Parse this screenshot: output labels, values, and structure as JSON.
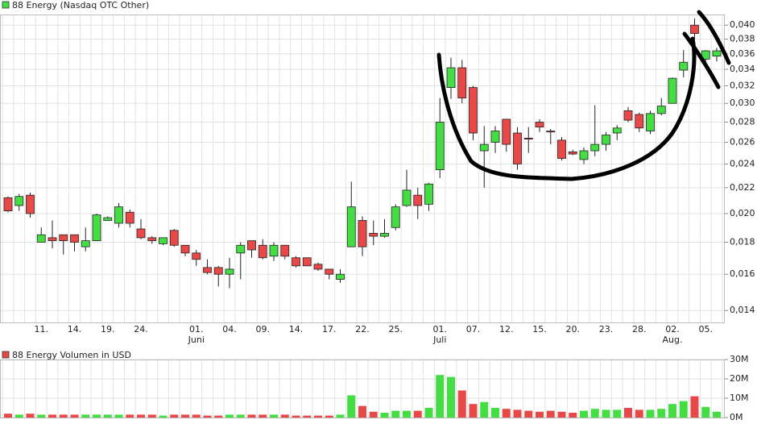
{
  "chart_data": [
    {
      "type": "candlestick",
      "yscale": "log",
      "grid": true,
      "up_color": "#44dd44",
      "down_color": "#e84848",
      "series": [
        {
          "name": "88 Energy (Nasdaq OTC Other)",
          "color": "#44dd44",
          "open": [
            0.0212,
            0.0206,
            0.0214,
            0.018,
            0.0183,
            0.0185,
            0.0185,
            0.0177,
            0.0181,
            0.0195,
            0.0193,
            0.0201,
            0.0189,
            0.0183,
            0.0179,
            0.0188,
            0.0178,
            0.0173,
            0.0164,
            0.0164,
            0.016,
            0.0173,
            0.0181,
            0.0178,
            0.0171,
            0.0178,
            0.017,
            0.017,
            0.0166,
            0.0163,
            0.0157,
            0.0177,
            0.0195,
            0.0186,
            0.0184,
            0.019,
            0.0206,
            0.0214,
            0.0207,
            0.0235,
            0.0318,
            0.0342,
            0.0318,
            0.0252,
            0.026,
            0.0283,
            0.0269,
            0.0264,
            0.028,
            0.0271,
            0.0262,
            0.0251,
            0.0244,
            0.0252,
            0.0258,
            0.0269,
            0.0292,
            0.0288,
            0.0271,
            0.0289,
            0.03,
            0.0339,
            0.04,
            0.0353,
            0.0357
          ],
          "high": [
            0.0213,
            0.0215,
            0.0216,
            0.019,
            0.0195,
            0.0185,
            0.0185,
            0.019,
            0.02,
            0.0198,
            0.0208,
            0.0203,
            0.0196,
            0.0184,
            0.0183,
            0.0189,
            0.0178,
            0.0175,
            0.0169,
            0.0165,
            0.017,
            0.018,
            0.0181,
            0.0182,
            0.018,
            0.0178,
            0.0171,
            0.017,
            0.0167,
            0.0163,
            0.0163,
            0.0225,
            0.0198,
            0.0195,
            0.0196,
            0.0207,
            0.0235,
            0.022,
            0.0224,
            0.0306,
            0.0355,
            0.0352,
            0.032,
            0.0276,
            0.0276,
            0.0283,
            0.0275,
            0.0275,
            0.0283,
            0.0273,
            0.0265,
            0.0253,
            0.0255,
            0.0298,
            0.027,
            0.0277,
            0.0296,
            0.029,
            0.0292,
            0.0306,
            0.033,
            0.0365,
            0.041,
            0.0365,
            0.0368
          ],
          "low": [
            0.0201,
            0.0202,
            0.0197,
            0.018,
            0.0176,
            0.0172,
            0.0174,
            0.0174,
            0.0181,
            0.0195,
            0.019,
            0.019,
            0.0182,
            0.0179,
            0.0178,
            0.0177,
            0.0171,
            0.0165,
            0.016,
            0.0153,
            0.0152,
            0.0157,
            0.017,
            0.0169,
            0.0168,
            0.0169,
            0.0164,
            0.0165,
            0.0162,
            0.0157,
            0.0155,
            0.0177,
            0.0171,
            0.0178,
            0.0183,
            0.0188,
            0.0205,
            0.0196,
            0.0202,
            0.0228,
            0.0305,
            0.03,
            0.0262,
            0.022,
            0.025,
            0.0251,
            0.0235,
            0.025,
            0.027,
            0.0258,
            0.0243,
            0.0248,
            0.024,
            0.0247,
            0.0252,
            0.0262,
            0.028,
            0.027,
            0.0268,
            0.0287,
            0.03,
            0.033,
            0.038,
            0.0348,
            0.035
          ],
          "close": [
            0.0202,
            0.0213,
            0.02,
            0.0185,
            0.0181,
            0.0181,
            0.018,
            0.0181,
            0.0199,
            0.0197,
            0.0205,
            0.0193,
            0.0183,
            0.0181,
            0.0183,
            0.0178,
            0.0173,
            0.0169,
            0.0161,
            0.016,
            0.0163,
            0.0178,
            0.0175,
            0.017,
            0.0178,
            0.0171,
            0.0165,
            0.0165,
            0.0163,
            0.016,
            0.016,
            0.0205,
            0.0177,
            0.0184,
            0.0186,
            0.0205,
            0.0218,
            0.0206,
            0.0223,
            0.028,
            0.0342,
            0.0306,
            0.0269,
            0.0258,
            0.0271,
            0.0258,
            0.024,
            0.0263,
            0.0275,
            0.027,
            0.0245,
            0.0249,
            0.0252,
            0.0258,
            0.0267,
            0.0274,
            0.0282,
            0.0274,
            0.0289,
            0.0297,
            0.0329,
            0.0349,
            0.0388,
            0.0364,
            0.0364
          ]
        }
      ],
      "categories": [
        null,
        null,
        null,
        "11.",
        null,
        null,
        "14.",
        null,
        null,
        "19.",
        null,
        null,
        "24.",
        null,
        null,
        null,
        null,
        "01.",
        null,
        null,
        "04.",
        null,
        null,
        "09.",
        null,
        null,
        "14.",
        null,
        null,
        "17.",
        null,
        null,
        "22.",
        null,
        null,
        "25.",
        null,
        null,
        null,
        "01.",
        null,
        null,
        "07.",
        null,
        null,
        "12.",
        null,
        null,
        "15.",
        null,
        null,
        "20.",
        null,
        null,
        "23.",
        null,
        null,
        "28.",
        null,
        null,
        "02.",
        null,
        null,
        "05.",
        null
      ],
      "category_groups": [
        null,
        null,
        null,
        null,
        null,
        null,
        null,
        null,
        null,
        null,
        null,
        null,
        null,
        null,
        null,
        null,
        null,
        "Juni",
        null,
        null,
        null,
        null,
        null,
        null,
        null,
        null,
        null,
        null,
        null,
        null,
        null,
        null,
        null,
        null,
        null,
        null,
        null,
        null,
        null,
        "Juli",
        null,
        null,
        null,
        null,
        null,
        null,
        null,
        null,
        null,
        null,
        null,
        null,
        null,
        null,
        null,
        null,
        null,
        null,
        null,
        null,
        "Aug.",
        null,
        null,
        null,
        null
      ],
      "ylim": [
        0.0134,
        0.0416
      ],
      "yticks": [
        {
          "value": 0.014,
          "label": "0,014"
        },
        {
          "value": 0.016,
          "label": "0,016"
        },
        {
          "value": 0.018,
          "label": "0,018"
        },
        {
          "value": 0.02,
          "label": "0,020"
        },
        {
          "value": 0.022,
          "label": "0,022"
        },
        {
          "value": 0.024,
          "label": "0,024"
        },
        {
          "value": 0.026,
          "label": "0,026"
        },
        {
          "value": 0.028,
          "label": "0,028"
        },
        {
          "value": 0.03,
          "label": "0,030"
        },
        {
          "value": 0.032,
          "label": "0,032"
        },
        {
          "value": 0.034,
          "label": "0,034"
        },
        {
          "value": 0.036,
          "label": "0,036"
        },
        {
          "value": 0.038,
          "label": "0,038"
        },
        {
          "value": 0.04,
          "label": "0,040"
        }
      ]
    },
    {
      "type": "bar",
      "grid": true,
      "series": [
        {
          "name": "88 Energy Volumen in USD",
          "color": "#e84848",
          "values": [
            2000000,
            1500000,
            2000000,
            1500000,
            1500000,
            1500000,
            1500000,
            1500000,
            1500000,
            1500000,
            1500000,
            1500000,
            1500000,
            1500000,
            1000000,
            1500000,
            1500000,
            1500000,
            1000000,
            1000000,
            1500000,
            1500000,
            1500000,
            1500000,
            1500000,
            1500000,
            1000000,
            1000000,
            1000000,
            1000000,
            1500000,
            11500000,
            6000000,
            3000000,
            2500000,
            3500000,
            3500000,
            3500000,
            5000000,
            22000000,
            21000000,
            14000000,
            7000000,
            8000000,
            5000000,
            4500000,
            4000000,
            3500000,
            3000000,
            3500000,
            3000000,
            2500000,
            3500000,
            4500000,
            4000000,
            4000000,
            5000000,
            4000000,
            4000000,
            4500000,
            7000000,
            8500000,
            11000000,
            5500000,
            3000000
          ]
        }
      ],
      "ylim": [
        0,
        30000000
      ],
      "yticks": [
        {
          "value": 0,
          "label": "0M"
        },
        {
          "value": 10000000,
          "label": "10M"
        },
        {
          "value": 20000000,
          "label": "20M"
        },
        {
          "value": 30000000,
          "label": "30M"
        }
      ]
    }
  ]
}
